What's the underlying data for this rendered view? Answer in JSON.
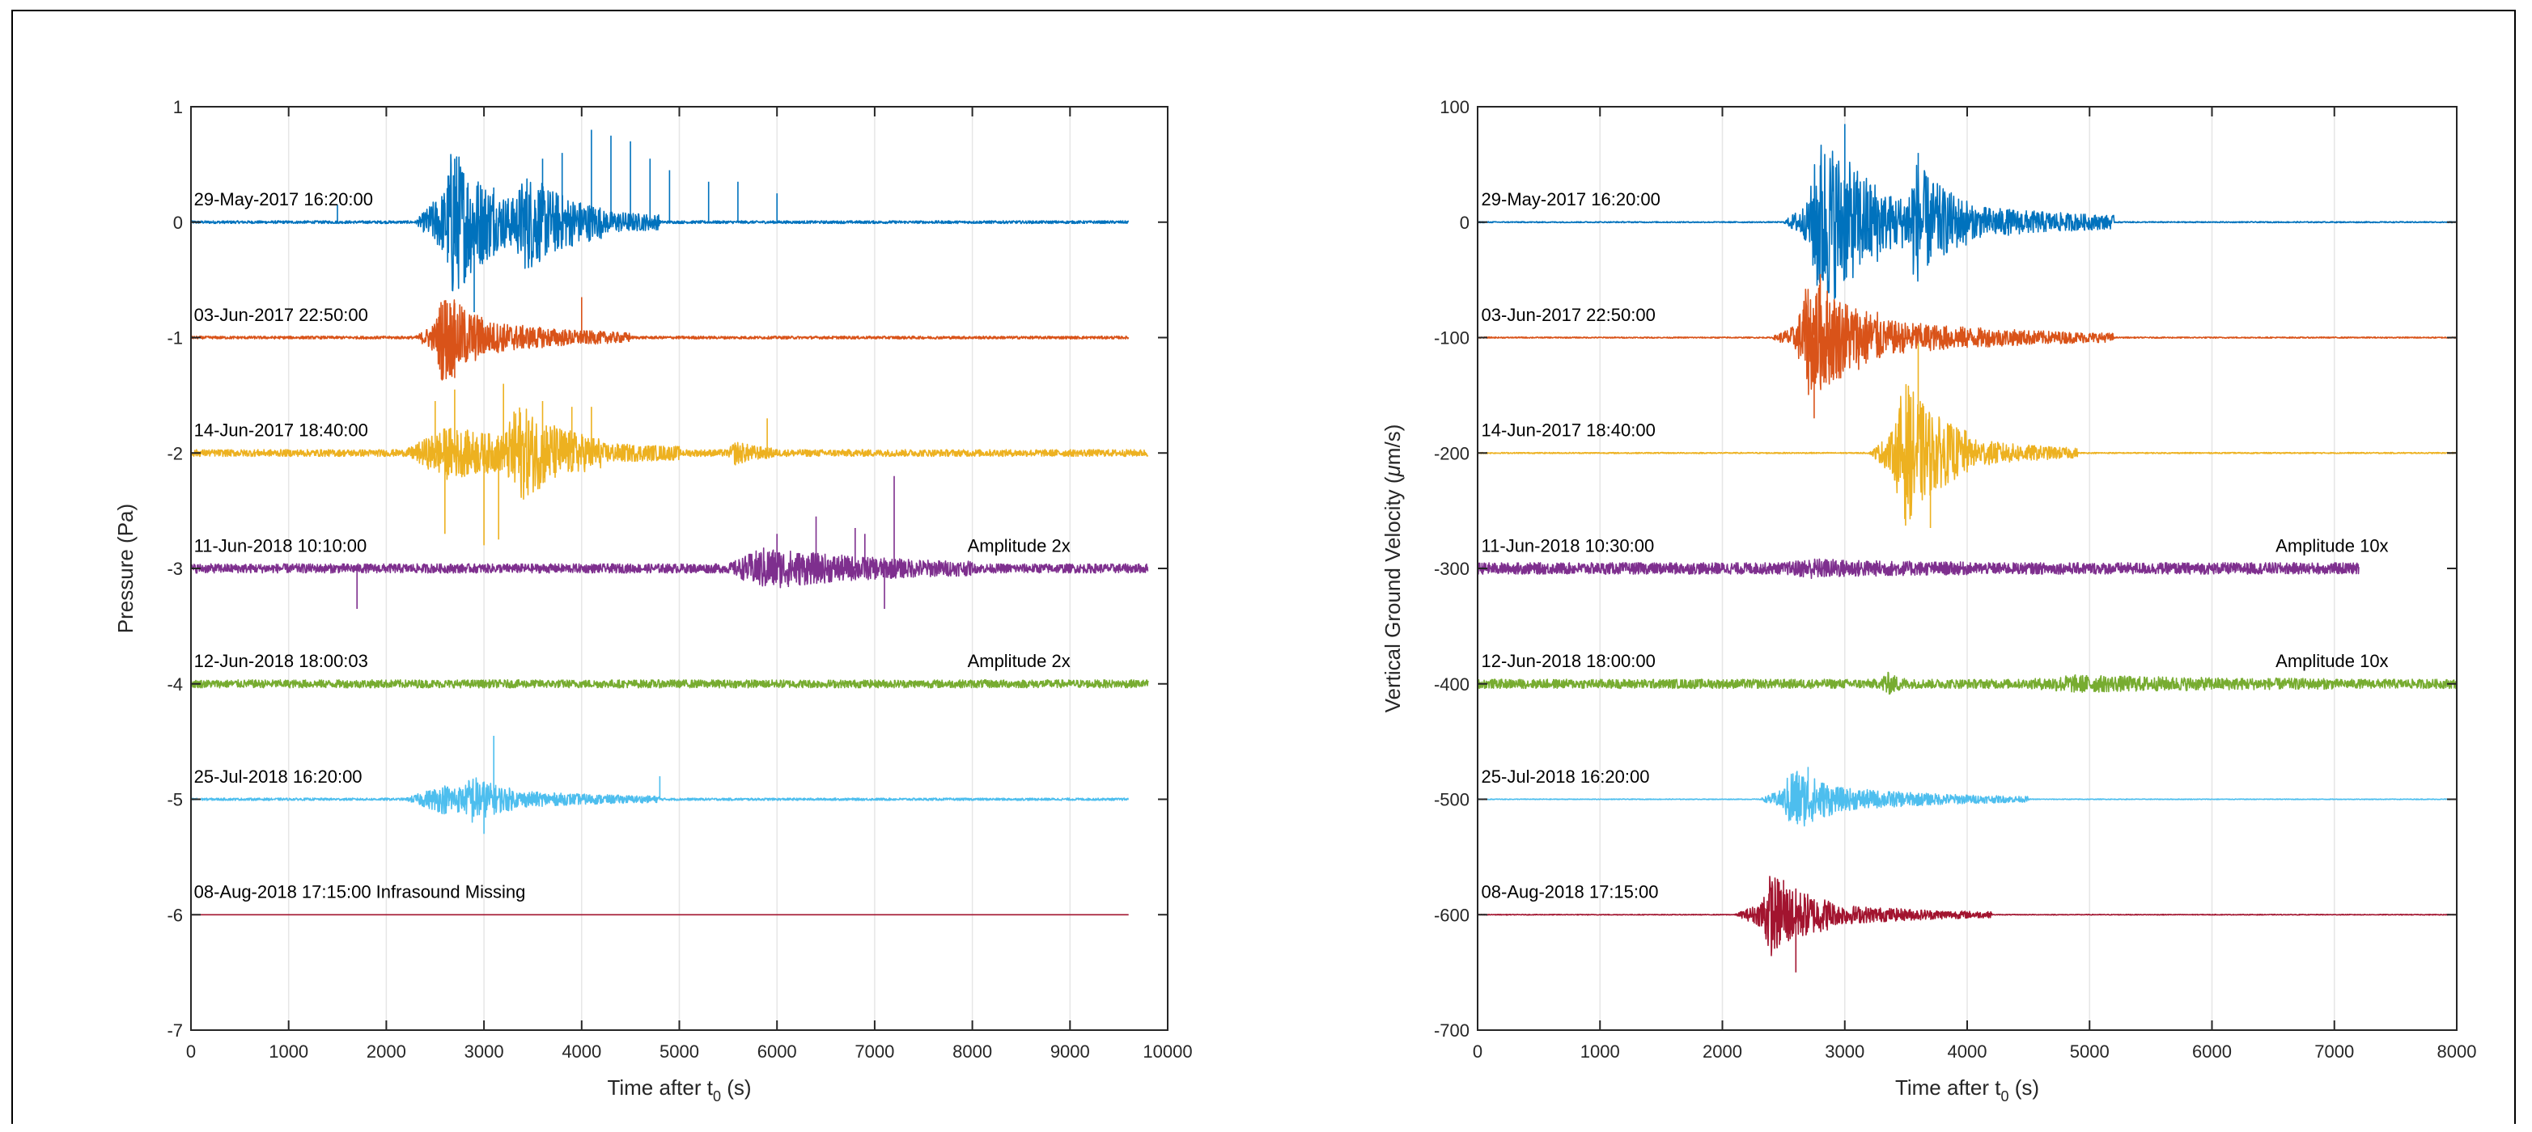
{
  "chart_data": [
    {
      "type": "line",
      "xlabel": "Time after t",
      "xlabel_sub": "0",
      "xlabel_unit": " (s)",
      "ylabel": "Pressure (Pa)",
      "xlim": [
        0,
        10000
      ],
      "ylim": [
        -7,
        1
      ],
      "xticks": [
        0,
        1000,
        2000,
        3000,
        4000,
        5000,
        6000,
        7000,
        8000,
        9000,
        10000
      ],
      "yticks": [
        1,
        0,
        -1,
        -2,
        -3,
        -4,
        -5,
        -6,
        -7
      ],
      "grid": true,
      "series": [
        {
          "name": "29-May-2017 16:20:00",
          "offset": 0,
          "x_end": 9600,
          "color": "#0072BD",
          "noise": 0.012,
          "bursts": [
            [
              2300,
              4800,
              0.35
            ],
            [
              2600,
              3100,
              0.35
            ],
            [
              3300,
              4200,
              0.25
            ]
          ],
          "spikes": [
            [
              1500,
              0.15
            ],
            [
              2700,
              0.55
            ],
            [
              3100,
              0.3
            ],
            [
              3600,
              0.55
            ],
            [
              3800,
              0.6
            ],
            [
              4100,
              0.8
            ],
            [
              4300,
              0.75
            ],
            [
              4500,
              0.7
            ],
            [
              4700,
              0.55
            ],
            [
              4900,
              0.45
            ],
            [
              5300,
              0.35
            ],
            [
              5600,
              0.35
            ],
            [
              6000,
              0.25
            ]
          ],
          "extra": [
            [
              2900,
              -0.78
            ]
          ]
        },
        {
          "name": "03-Jun-2017 22:50:00",
          "offset": -1,
          "x_end": 9600,
          "color": "#D95319",
          "noise": 0.012,
          "bursts": [
            [
              2300,
              4500,
              0.2
            ],
            [
              2500,
              3000,
              0.22
            ]
          ],
          "spikes": [
            [
              2700,
              0.3
            ],
            [
              4000,
              0.35
            ]
          ],
          "extra": [
            [
              2700,
              -1.35
            ]
          ]
        },
        {
          "name": "14-Jun-2017 18:40:00",
          "offset": -2,
          "x_end": 9800,
          "color": "#EDB120",
          "noise": 0.03,
          "bursts": [
            [
              2200,
              5000,
              0.2
            ],
            [
              3200,
              4200,
              0.3
            ],
            [
              5500,
              6000,
              0.08
            ]
          ],
          "spikes": [
            [
              2500,
              0.45
            ],
            [
              2700,
              0.55
            ],
            [
              3200,
              0.6
            ],
            [
              3600,
              0.45
            ],
            [
              3900,
              0.4
            ],
            [
              4100,
              0.4
            ],
            [
              5900,
              0.3
            ],
            [
              2600,
              -0.7
            ],
            [
              3150,
              -0.75
            ]
          ],
          "extra": [
            [
              3000,
              -2.8
            ]
          ]
        },
        {
          "name": "11-Jun-2018 10:10:00",
          "offset": -3,
          "x_end": 9800,
          "color": "#7E2F8E",
          "noise": 0.04,
          "bursts": [
            [
              5500,
              8000,
              0.15
            ]
          ],
          "spikes": [
            [
              1700,
              -0.35
            ],
            [
              6000,
              0.3
            ],
            [
              6400,
              0.45
            ],
            [
              6800,
              0.35
            ],
            [
              7200,
              0.8
            ],
            [
              7100,
              -0.35
            ],
            [
              6900,
              0.3
            ]
          ],
          "extra": []
        },
        {
          "name": "12-Jun-2018 18:00:03",
          "offset": -4,
          "x_end": 9800,
          "color": "#77AC30",
          "noise": 0.035,
          "bursts": [],
          "spikes": [],
          "extra": []
        },
        {
          "name": "25-Jul-2018 16:20:00",
          "offset": -5,
          "x_end": 9600,
          "color": "#4DBEEE",
          "noise": 0.01,
          "bursts": [
            [
              2200,
              4800,
              0.12
            ],
            [
              2800,
              3300,
              0.12
            ]
          ],
          "spikes": [
            [
              3100,
              0.55
            ],
            [
              4800,
              0.2
            ],
            [
              3000,
              -0.3
            ]
          ],
          "extra": []
        },
        {
          "name": "08-Aug-2018 17:15:00 Infrasound Missing",
          "offset": -6,
          "x_end": 9600,
          "color": "#A2142F",
          "noise": 0.0,
          "bursts": [],
          "spikes": [],
          "extra": []
        }
      ],
      "annotations": [
        {
          "text": "29-May-2017 16:20:00",
          "x": 30,
          "y": 0.2
        },
        {
          "text": "03-Jun-2017 22:50:00",
          "x": 30,
          "y": -0.8
        },
        {
          "text": "14-Jun-2017 18:40:00",
          "x": 30,
          "y": -1.8
        },
        {
          "text": "11-Jun-2018 10:10:00",
          "x": 30,
          "y": -2.8
        },
        {
          "text": "Amplitude 2x",
          "x": 7950,
          "y": -2.8
        },
        {
          "text": "12-Jun-2018 18:00:03",
          "x": 30,
          "y": -3.8
        },
        {
          "text": "Amplitude 2x",
          "x": 7950,
          "y": -3.8
        },
        {
          "text": "25-Jul-2018 16:20:00",
          "x": 30,
          "y": -4.8
        },
        {
          "text": "08-Aug-2018 17:15:00 Infrasound Missing",
          "x": 30,
          "y": -5.8
        }
      ]
    },
    {
      "type": "line",
      "xlabel": "Time after t",
      "xlabel_sub": "0",
      "xlabel_unit": " (s)",
      "ylabel": "Vertical Ground Velocity (",
      "ylabel_mu": "μ",
      "ylabel_unit": "m/s)",
      "xlim": [
        0,
        8000
      ],
      "ylim": [
        -700,
        100
      ],
      "xticks": [
        0,
        1000,
        2000,
        3000,
        4000,
        5000,
        6000,
        7000,
        8000
      ],
      "yticks": [
        100,
        0,
        -100,
        -200,
        -300,
        -400,
        -500,
        -600,
        -700
      ],
      "grid": true,
      "series": [
        {
          "name": "29-May-2017 16:20:00",
          "offset": 0,
          "x_end": 8000,
          "color": "#0072BD",
          "noise": 0.5,
          "bursts": [
            [
              2500,
              5200,
              35
            ],
            [
              2700,
              3300,
              50
            ],
            [
              3500,
              4000,
              35
            ]
          ],
          "spikes": [
            [
              3000,
              85
            ],
            [
              3600,
              60
            ]
          ],
          "extra": []
        },
        {
          "name": "03-Jun-2017 22:50:00",
          "offset": -100,
          "x_end": 8000,
          "color": "#D95319",
          "noise": 0.5,
          "bursts": [
            [
              2400,
              5200,
              22
            ],
            [
              2600,
              3300,
              35
            ]
          ],
          "spikes": [
            [
              2800,
              55
            ],
            [
              2750,
              -70
            ]
          ],
          "extra": []
        },
        {
          "name": "14-Jun-2017 18:40:00",
          "offset": -200,
          "x_end": 8000,
          "color": "#EDB120",
          "noise": 0.5,
          "bursts": [
            [
              3200,
              4900,
              25
            ],
            [
              3400,
              4000,
              40
            ]
          ],
          "spikes": [
            [
              3600,
              95
            ],
            [
              3700,
              -65
            ]
          ],
          "extra": []
        },
        {
          "name": "11-Jun-2018 10:30:00",
          "offset": -300,
          "x_end": 7200,
          "color": "#7E2F8E",
          "noise": 5,
          "bursts": [
            [
              2500,
              4000,
              4
            ]
          ],
          "spikes": [],
          "extra": []
        },
        {
          "name": "12-Jun-2018 18:00:00",
          "offset": -400,
          "x_end": 8000,
          "color": "#77AC30",
          "noise": 4,
          "bursts": [
            [
              3300,
              3500,
              8
            ],
            [
              4500,
              7000,
              4
            ]
          ],
          "spikes": [],
          "extra": []
        },
        {
          "name": "25-Jul-2018 16:20:00",
          "offset": -500,
          "x_end": 8000,
          "color": "#4DBEEE",
          "noise": 0.3,
          "bursts": [
            [
              2300,
              4500,
              14
            ],
            [
              2500,
              2900,
              18
            ]
          ],
          "spikes": [
            [
              2700,
              28
            ]
          ],
          "extra": []
        },
        {
          "name": "08-Aug-2018 17:15:00",
          "offset": -600,
          "x_end": 8000,
          "color": "#A2142F",
          "noise": 0.3,
          "bursts": [
            [
              2100,
              4200,
              15
            ],
            [
              2300,
              2900,
              22
            ]
          ],
          "spikes": [
            [
              2600,
              -50
            ],
            [
              2500,
              30
            ]
          ],
          "extra": []
        }
      ],
      "annotations": [
        {
          "text": "29-May-2017 16:20:00",
          "x": 30,
          "y": 20
        },
        {
          "text": "03-Jun-2017 22:50:00",
          "x": 30,
          "y": -80
        },
        {
          "text": "14-Jun-2017 18:40:00",
          "x": 30,
          "y": -180
        },
        {
          "text": "11-Jun-2018 10:30:00",
          "x": 30,
          "y": -280
        },
        {
          "text": "Amplitude 10x",
          "x": 6520,
          "y": -280
        },
        {
          "text": "12-Jun-2018 18:00:00",
          "x": 30,
          "y": -380
        },
        {
          "text": "Amplitude 10x",
          "x": 6520,
          "y": -380
        },
        {
          "text": "25-Jul-2018 16:20:00",
          "x": 30,
          "y": -480
        },
        {
          "text": "08-Aug-2018 17:15:00",
          "x": 30,
          "y": -580
        }
      ]
    }
  ]
}
